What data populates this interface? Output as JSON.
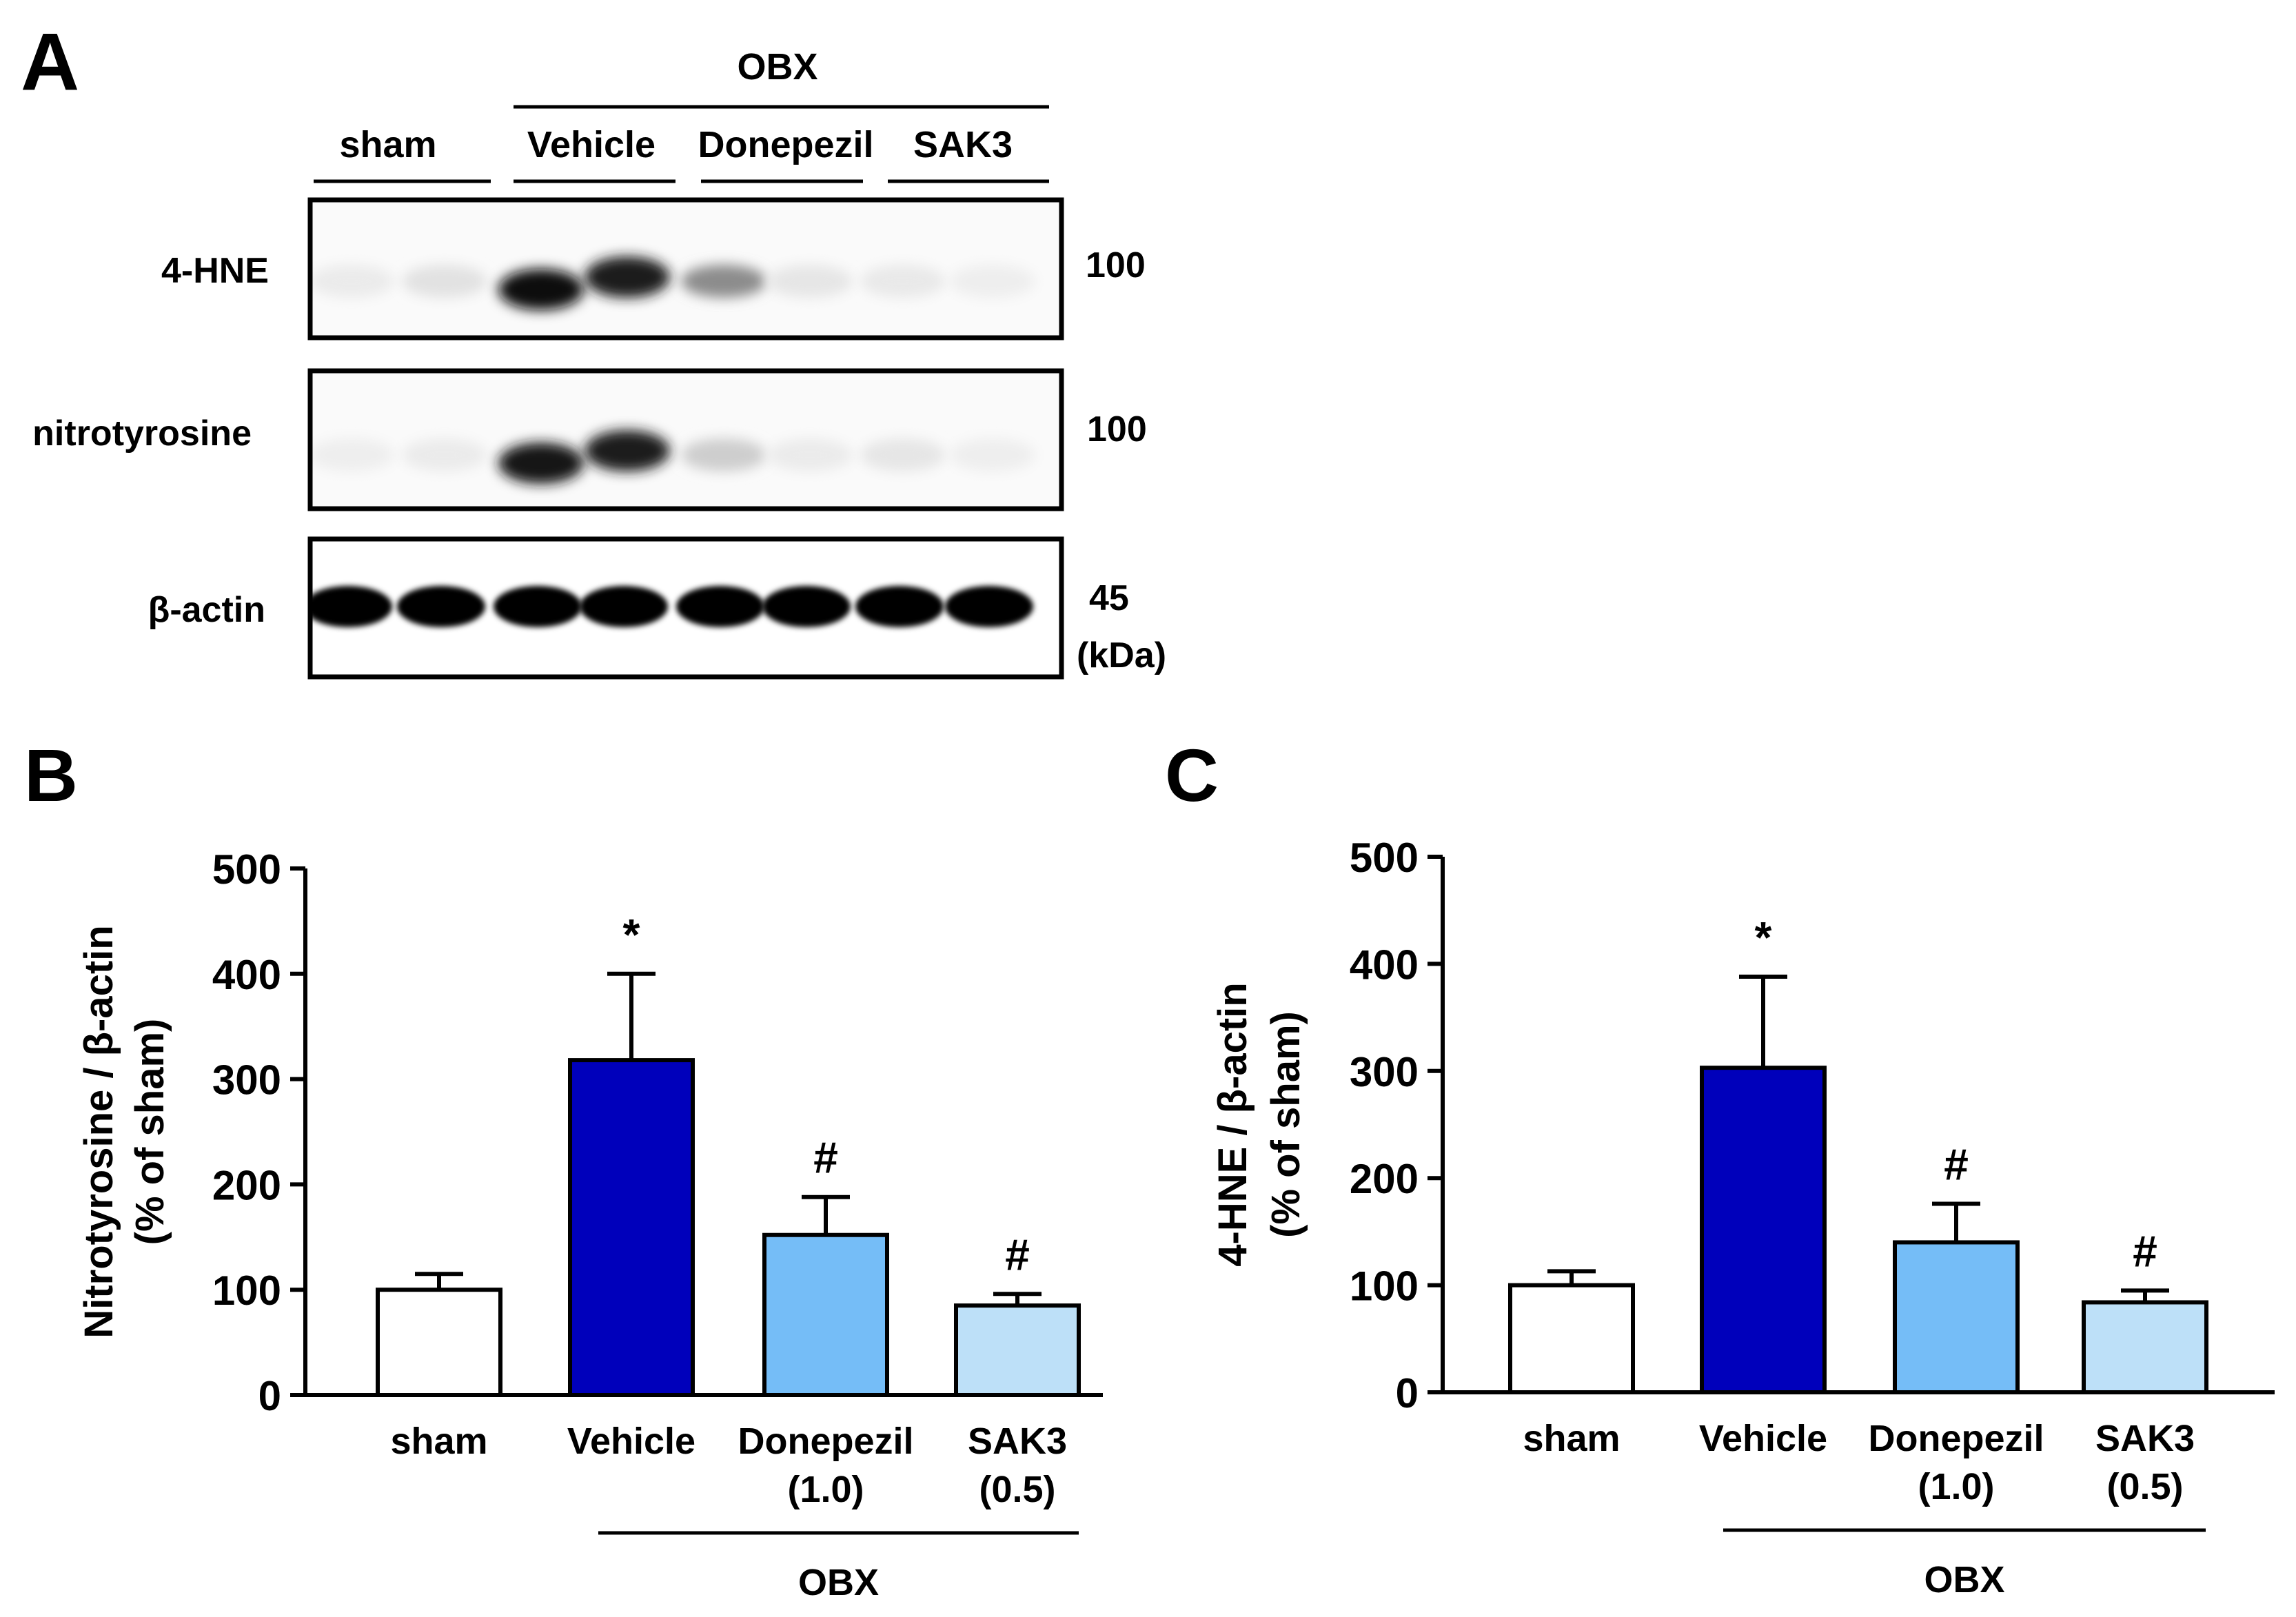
{
  "panelA": {
    "letter": "A",
    "header_group": "OBX",
    "groups": [
      "sham",
      "Vehicle",
      "Donepezil",
      "SAK3"
    ],
    "rows": [
      {
        "label": "4-HNE",
        "mw": "100"
      },
      {
        "label": "nitrotyrosine",
        "mw": "100"
      },
      {
        "label": "β-actin",
        "mw": "45"
      }
    ],
    "unit": "(kDa)",
    "band_intensity": {
      "4-HNE": [
        0.06,
        0.1,
        0.95,
        0.9,
        0.45,
        0.08,
        0.07,
        0.05
      ],
      "nitrotyrosine": [
        0.05,
        0.06,
        0.92,
        0.9,
        0.18,
        0.06,
        0.08,
        0.05
      ],
      "β-actin": [
        1,
        1,
        1,
        1,
        1,
        1,
        1,
        1
      ]
    }
  },
  "chart_data": [
    {
      "panel": "B",
      "type": "bar",
      "ylabel_line1": "Nitrotyrosine / β-actin",
      "ylabel_line2": "(% of sham)",
      "ylim": [
        0,
        500
      ],
      "yticks": [
        "0",
        "100",
        "200",
        "300",
        "400",
        "500"
      ],
      "categories": [
        {
          "line1": "sham",
          "line2": ""
        },
        {
          "line1": "Vehicle",
          "line2": ""
        },
        {
          "line1": "Donepezil",
          "line2": "(1.0)"
        },
        {
          "line1": "SAK3",
          "line2": "(0.5)"
        }
      ],
      "values": [
        100,
        318,
        152,
        85
      ],
      "errors": [
        15,
        82,
        36,
        11
      ],
      "annotations": [
        "",
        "*",
        "#",
        "#"
      ],
      "colors": [
        "#ffffff",
        "#0000bb",
        "#75bdf7",
        "#bde0f8"
      ],
      "group_label": "OBX"
    },
    {
      "panel": "C",
      "type": "bar",
      "ylabel_line1": "4-HNE / β-actin",
      "ylabel_line2": "(% of sham)",
      "ylim": [
        0,
        500
      ],
      "yticks": [
        "0",
        "100",
        "200",
        "300",
        "400",
        "500"
      ],
      "categories": [
        {
          "line1": "sham",
          "line2": ""
        },
        {
          "line1": "Vehicle",
          "line2": ""
        },
        {
          "line1": "Donepezil",
          "line2": "(1.0)"
        },
        {
          "line1": "SAK3",
          "line2": "(0.5)"
        }
      ],
      "values": [
        100,
        303,
        140,
        84
      ],
      "errors": [
        13,
        85,
        36,
        11
      ],
      "annotations": [
        "",
        "*",
        "#",
        "#"
      ],
      "colors": [
        "#ffffff",
        "#0000bb",
        "#75bdf7",
        "#bde0f8"
      ],
      "group_label": "OBX"
    }
  ]
}
